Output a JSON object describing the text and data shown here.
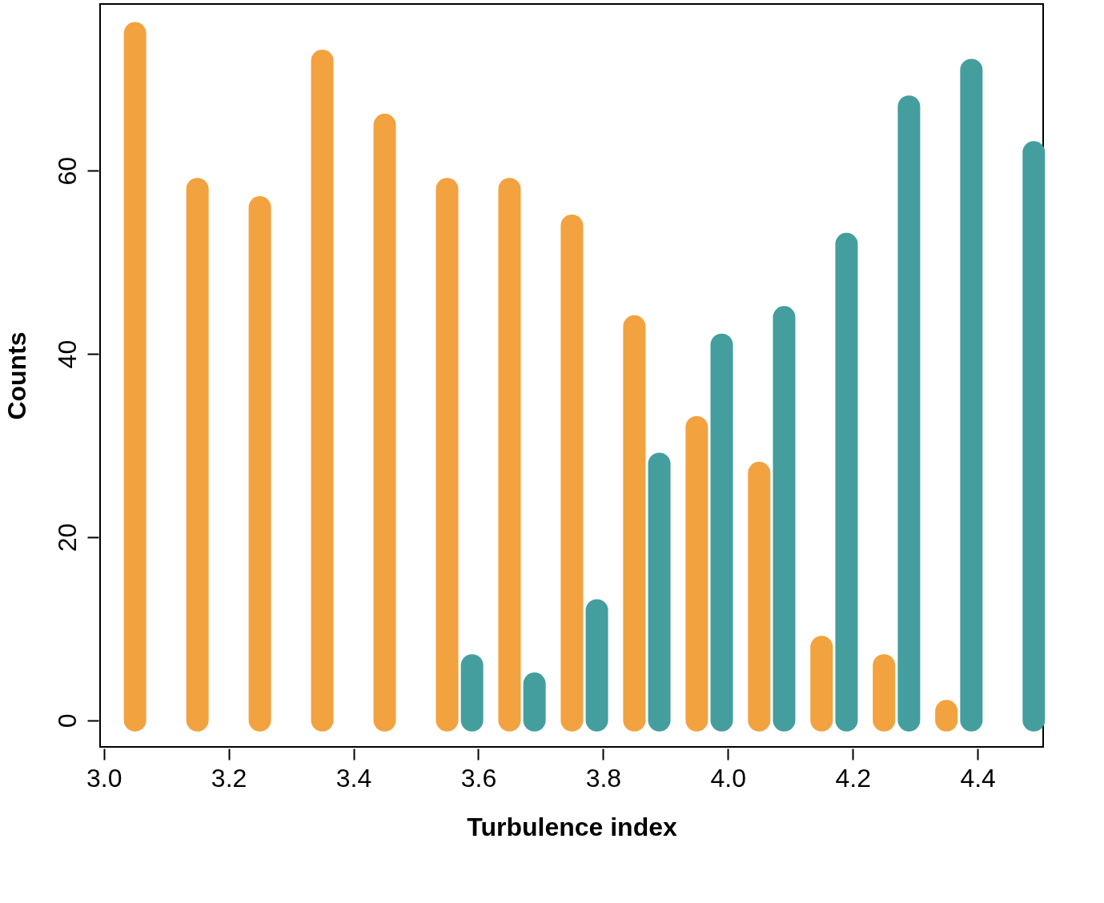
{
  "chart_data": {
    "type": "bar",
    "xlabel": "Turbulence index",
    "ylabel": "Counts",
    "xlim": [
      2.994,
      4.505
    ],
    "ylim": [
      -2.9,
      78.2
    ],
    "xticks": [
      {
        "value": 3.0,
        "label": "3.0"
      },
      {
        "value": 3.2,
        "label": "3.2"
      },
      {
        "value": 3.4,
        "label": "3.4"
      },
      {
        "value": 3.6,
        "label": "3.6"
      },
      {
        "value": 3.8,
        "label": "3.8"
      },
      {
        "value": 4.0,
        "label": "4.0"
      },
      {
        "value": 4.2,
        "label": "4.2"
      },
      {
        "value": 4.4,
        "label": "4.4"
      }
    ],
    "yticks": [
      0,
      20,
      40,
      60
    ],
    "grid": false,
    "legend": false,
    "series": [
      {
        "color": "#f2a23f",
        "x": [
          3.05,
          3.15,
          3.25,
          3.35,
          3.45,
          3.55,
          3.65,
          3.75,
          3.85,
          3.95,
          4.05,
          4.15,
          4.25,
          4.35
        ],
        "values": [
          75,
          58,
          56,
          72,
          65,
          58,
          58,
          54,
          43,
          32,
          27,
          8,
          6,
          1
        ]
      },
      {
        "color": "#449e9e",
        "x": [
          3.59,
          3.69,
          3.79,
          3.89,
          3.99,
          4.09,
          4.19,
          4.29,
          4.39,
          4.49
        ],
        "values": [
          6,
          4,
          12,
          28,
          41,
          44,
          52,
          67,
          71,
          62
        ]
      }
    ]
  }
}
